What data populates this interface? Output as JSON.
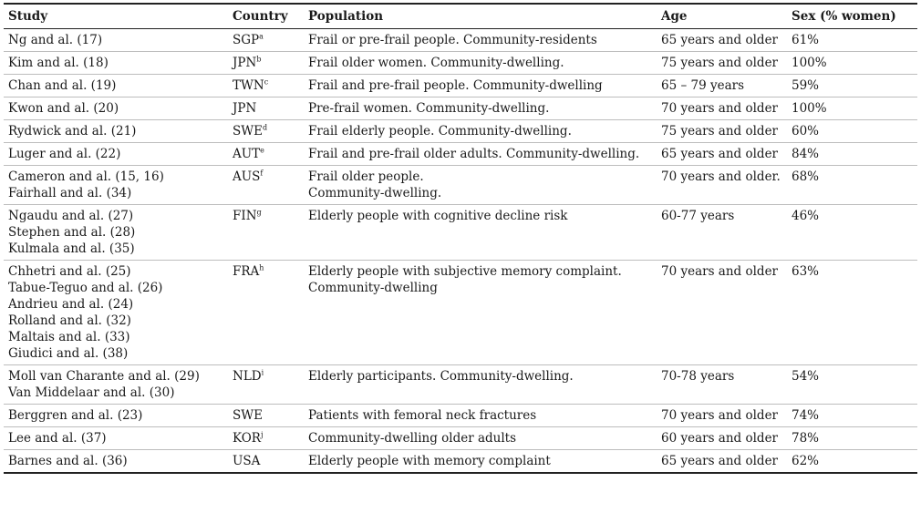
{
  "headers": {
    "study": "Study",
    "country": "Country",
    "population": "Population",
    "age": "Age",
    "sex": "Sex (% women)"
  },
  "rows": [
    {
      "studies": [
        "Ng and al. (17)"
      ],
      "country": "SGP",
      "sup": "a",
      "population": [
        "Frail or pre-frail people. Community-residents"
      ],
      "age": "65 years and older",
      "sex": "61%"
    },
    {
      "studies": [
        "Kim and al. (18)"
      ],
      "country": "JPN",
      "sup": "b",
      "population": [
        "Frail older women. Community-dwelling."
      ],
      "age": "75 years and older",
      "sex": "100%"
    },
    {
      "studies": [
        "Chan and al. (19)"
      ],
      "country": "TWN",
      "sup": "c",
      "population": [
        "Frail and pre-frail people. Community-dwelling"
      ],
      "age": "65 – 79 years",
      "sex": "59%"
    },
    {
      "studies": [
        "Kwon and al. (20)"
      ],
      "country": "JPN",
      "sup": "",
      "population": [
        "Pre-frail women. Community-dwelling."
      ],
      "age": "70 years and older",
      "sex": "100%"
    },
    {
      "studies": [
        "Rydwick and al. (21)"
      ],
      "country": "SWE",
      "sup": "d",
      "population": [
        "Frail elderly people. Community-dwelling."
      ],
      "age": "75 years and older",
      "sex": "60%"
    },
    {
      "studies": [
        "Luger and al. (22)"
      ],
      "country": "AUT",
      "sup": "e",
      "population": [
        "Frail and pre-frail older adults. Community-dwelling."
      ],
      "age": "65 years and older",
      "sex": "84%"
    },
    {
      "studies": [
        "Cameron and al. (15, 16)",
        "Fairhall and al. (34)"
      ],
      "country": "AUS",
      "sup": "f",
      "population": [
        "Frail older people.",
        "Community-dwelling."
      ],
      "age": "70 years and older.",
      "sex": "68%"
    },
    {
      "studies": [
        "Ngaudu and al. (27)",
        "Stephen and al. (28)",
        "Kulmala and al. (35)"
      ],
      "country": "FIN",
      "sup": "g",
      "population": [
        "Elderly people with cognitive decline risk"
      ],
      "age": "60-77 years",
      "sex": "46%"
    },
    {
      "studies": [
        "Chhetri and al. (25)",
        "Tabue-Teguo and al. (26)",
        "Andrieu and al. (24)",
        "Rolland and al. (32)",
        "Maltais and al. (33)",
        "Giudici and al. (38)"
      ],
      "country": "FRA",
      "sup": "h",
      "population": [
        "Elderly people with subjective memory complaint.",
        "Community-dwelling"
      ],
      "age": "70 years and older",
      "sex": "63%"
    },
    {
      "studies": [
        "Moll van Charante and al. (29)",
        "Van Middelaar and al. (30)"
      ],
      "country": "NLD",
      "sup": "i",
      "population": [
        "Elderly participants. Community-dwelling."
      ],
      "age": "70-78 years",
      "sex": "54%"
    },
    {
      "studies": [
        "Berggren and al. (23)"
      ],
      "country": "SWE",
      "sup": "",
      "population": [
        "Patients with femoral neck fractures"
      ],
      "age": "70 years and older",
      "sex": "74%"
    },
    {
      "studies": [
        "Lee and al. (37)"
      ],
      "country": "KOR",
      "sup": "j",
      "population": [
        "Community-dwelling older adults"
      ],
      "age": "60 years and older",
      "sex": "78%"
    },
    {
      "studies": [
        "Barnes and al. (36)"
      ],
      "country": "USA",
      "sup": "",
      "population": [
        "Elderly people with memory complaint"
      ],
      "age": "65 years and older",
      "sex": "62%"
    }
  ]
}
